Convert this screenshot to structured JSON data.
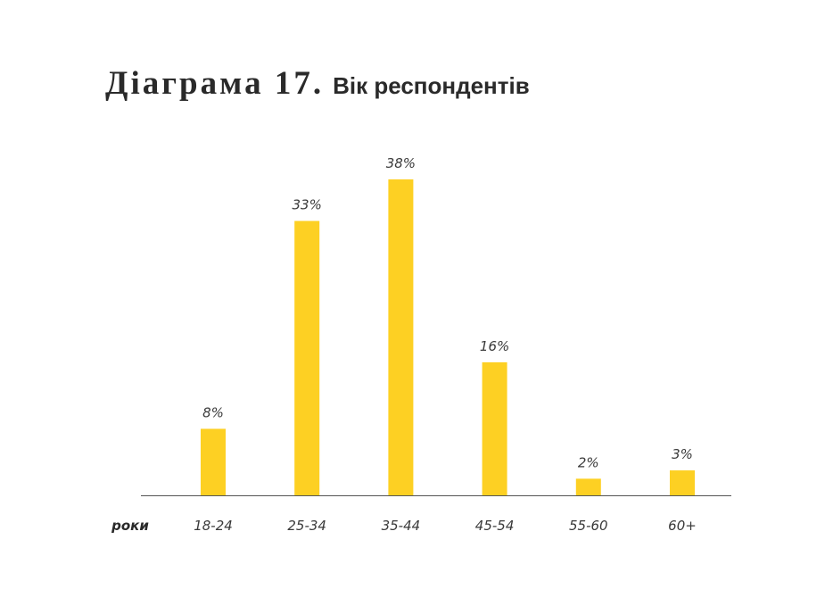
{
  "title": {
    "main": "Діаграма 17.",
    "sub": "Вік респондентів"
  },
  "colors": {
    "bar": "#fdd023",
    "axis": "#555555",
    "text": "#3a3a3a"
  },
  "chart_data": {
    "type": "bar",
    "title": "Діаграма 17. Вік респондентів",
    "xlabel": "роки",
    "ylabel": "",
    "categories": [
      "18-24",
      "25-34",
      "35-44",
      "45-54",
      "55-60",
      "60+"
    ],
    "values": [
      8,
      33,
      38,
      16,
      2,
      3
    ],
    "data_labels": [
      "8%",
      "33%",
      "38%",
      "16%",
      "2%",
      "3%"
    ],
    "ylim": [
      0,
      38
    ],
    "grid": false,
    "legend": "none"
  }
}
